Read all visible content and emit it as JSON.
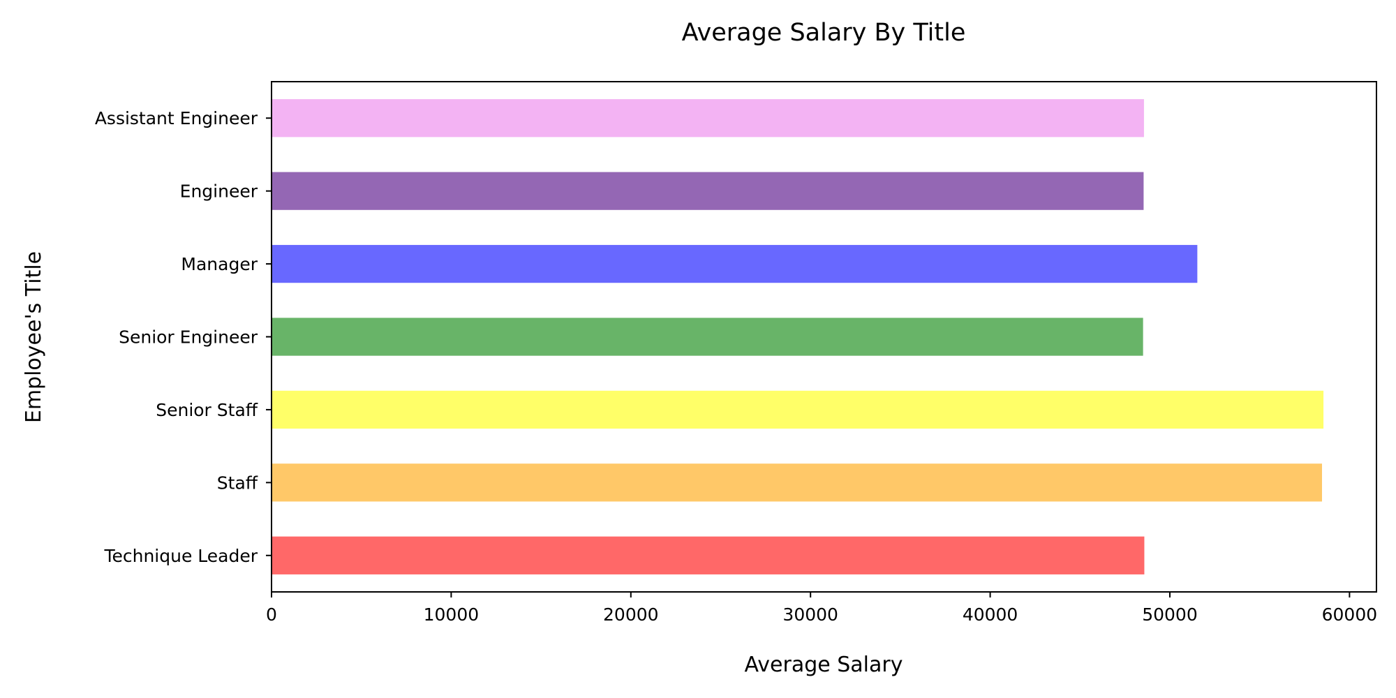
{
  "chart_data": {
    "type": "bar",
    "orientation": "horizontal",
    "title": "Average Salary By Title",
    "xlabel": "Average Salary",
    "ylabel": "Employee's Title",
    "categories": [
      "Assistant Engineer",
      "Engineer",
      "Manager",
      "Senior Engineer",
      "Senior Staff",
      "Staff",
      "Technique Leader"
    ],
    "values": [
      48560,
      48540,
      51530,
      48510,
      58550,
      58470,
      48580
    ],
    "colors": [
      "#f3b3f3",
      "#9467b4",
      "#6868ff",
      "#68b468",
      "#ffff68",
      "#ffc868",
      "#ff6868"
    ],
    "xlim": [
      0,
      61500
    ],
    "xticks": [
      0,
      10000,
      20000,
      30000,
      40000,
      50000,
      60000
    ],
    "grid": false,
    "legend": "none"
  }
}
